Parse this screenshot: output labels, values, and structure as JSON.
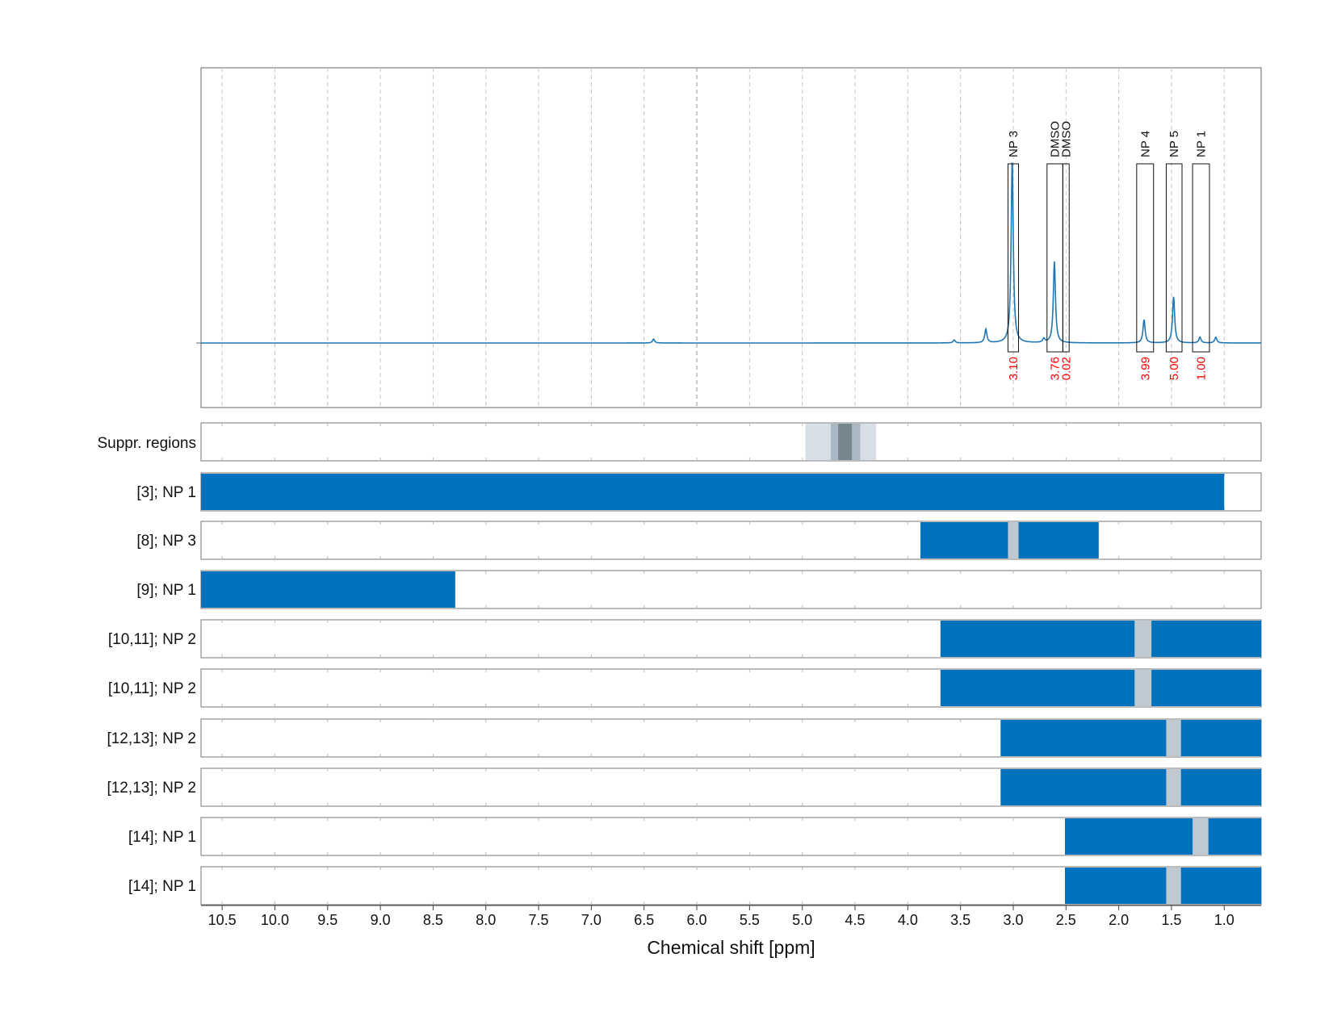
{
  "chart_data": {
    "type": "nmr-spectrum-with-region-tracks",
    "xlabel": "Chemical shift [ppm]",
    "x_reversed": true,
    "xlim": [
      10.7,
      0.65
    ],
    "x_ticks": [
      "10.5",
      "10.0",
      "9.5",
      "9.0",
      "8.5",
      "8.0",
      "7.5",
      "7.0",
      "6.5",
      "6.0",
      "5.5",
      "5.0",
      "4.5",
      "4.0",
      "3.5",
      "3.0",
      "2.5",
      "2.0",
      "1.5",
      "1.0"
    ],
    "grid": "vertical dashed",
    "colors": {
      "spectrum": "#1f77b4",
      "bar": "#0072bd",
      "gap": "#bfc9d1",
      "label_value": "#ff0000",
      "suppr_light": "#d8dee6",
      "suppr_mid": "#aab8c4",
      "suppr_dark": "#76868f"
    },
    "spectrum": {
      "baseline": 0,
      "peaks": [
        {
          "x": 6.41,
          "y": 0.02
        },
        {
          "x": 3.56,
          "y": 0.015
        },
        {
          "x": 3.26,
          "y": 0.07
        },
        {
          "x": 3.01,
          "y": 0.95
        },
        {
          "x": 2.71,
          "y": 0.02
        },
        {
          "x": 2.61,
          "y": 0.42
        },
        {
          "x": 1.76,
          "y": 0.12
        },
        {
          "x": 1.48,
          "y": 0.24
        },
        {
          "x": 1.23,
          "y": 0.03
        },
        {
          "x": 1.08,
          "y": 0.03
        }
      ]
    },
    "annotations": [
      {
        "label": "NP 3",
        "value": "3.10",
        "x_from": 3.05,
        "x_to": 2.95
      },
      {
        "label": "DMSO",
        "value": "3.76",
        "x_from": 2.68,
        "x_to": 2.53
      },
      {
        "label": "DMSO",
        "value": "0.02",
        "x_from": 2.53,
        "x_to": 2.47
      },
      {
        "label": "NP 4",
        "value": "3.99",
        "x_from": 1.83,
        "x_to": 1.67
      },
      {
        "label": "NP 5",
        "value": "5.00",
        "x_from": 1.55,
        "x_to": 1.4
      },
      {
        "label": "NP 1",
        "value": "1.00",
        "x_from": 1.3,
        "x_to": 1.14
      }
    ],
    "suppression": {
      "label": "Suppr. regions",
      "regions": [
        {
          "from": 4.97,
          "to": 4.3,
          "level": "light"
        },
        {
          "from": 4.73,
          "to": 4.45,
          "level": "mid"
        },
        {
          "from": 4.66,
          "to": 4.53,
          "level": "dark"
        }
      ]
    },
    "tracks": [
      {
        "label": "[3]; NP 1",
        "segments": [
          [
            10.7,
            1.0
          ]
        ],
        "gaps": []
      },
      {
        "label": "[8]; NP 3",
        "segments": [
          [
            3.88,
            2.19
          ]
        ],
        "gaps": [
          [
            3.05,
            2.95
          ]
        ]
      },
      {
        "label": "[9]; NP 1",
        "segments": [
          [
            10.7,
            8.29
          ]
        ],
        "gaps": []
      },
      {
        "label": "[10,11]; NP 2",
        "segments": [
          [
            3.69,
            0.65
          ]
        ],
        "gaps": [
          [
            1.85,
            1.69
          ]
        ]
      },
      {
        "label": "[10,11]; NP 2",
        "segments": [
          [
            3.69,
            0.65
          ]
        ],
        "gaps": [
          [
            1.85,
            1.69
          ]
        ]
      },
      {
        "label": "[12,13]; NP 2",
        "segments": [
          [
            3.12,
            0.65
          ]
        ],
        "gaps": [
          [
            1.55,
            1.41
          ]
        ]
      },
      {
        "label": "[12,13]; NP 2",
        "segments": [
          [
            3.12,
            0.65
          ]
        ],
        "gaps": [
          [
            1.55,
            1.41
          ]
        ]
      },
      {
        "label": "[14]; NP 1",
        "segments": [
          [
            2.51,
            0.65
          ]
        ],
        "gaps": [
          [
            1.3,
            1.15
          ]
        ]
      },
      {
        "label": "[14]; NP 1",
        "segments": [
          [
            2.51,
            0.65
          ]
        ],
        "gaps": [
          [
            1.55,
            1.41
          ]
        ]
      }
    ]
  }
}
